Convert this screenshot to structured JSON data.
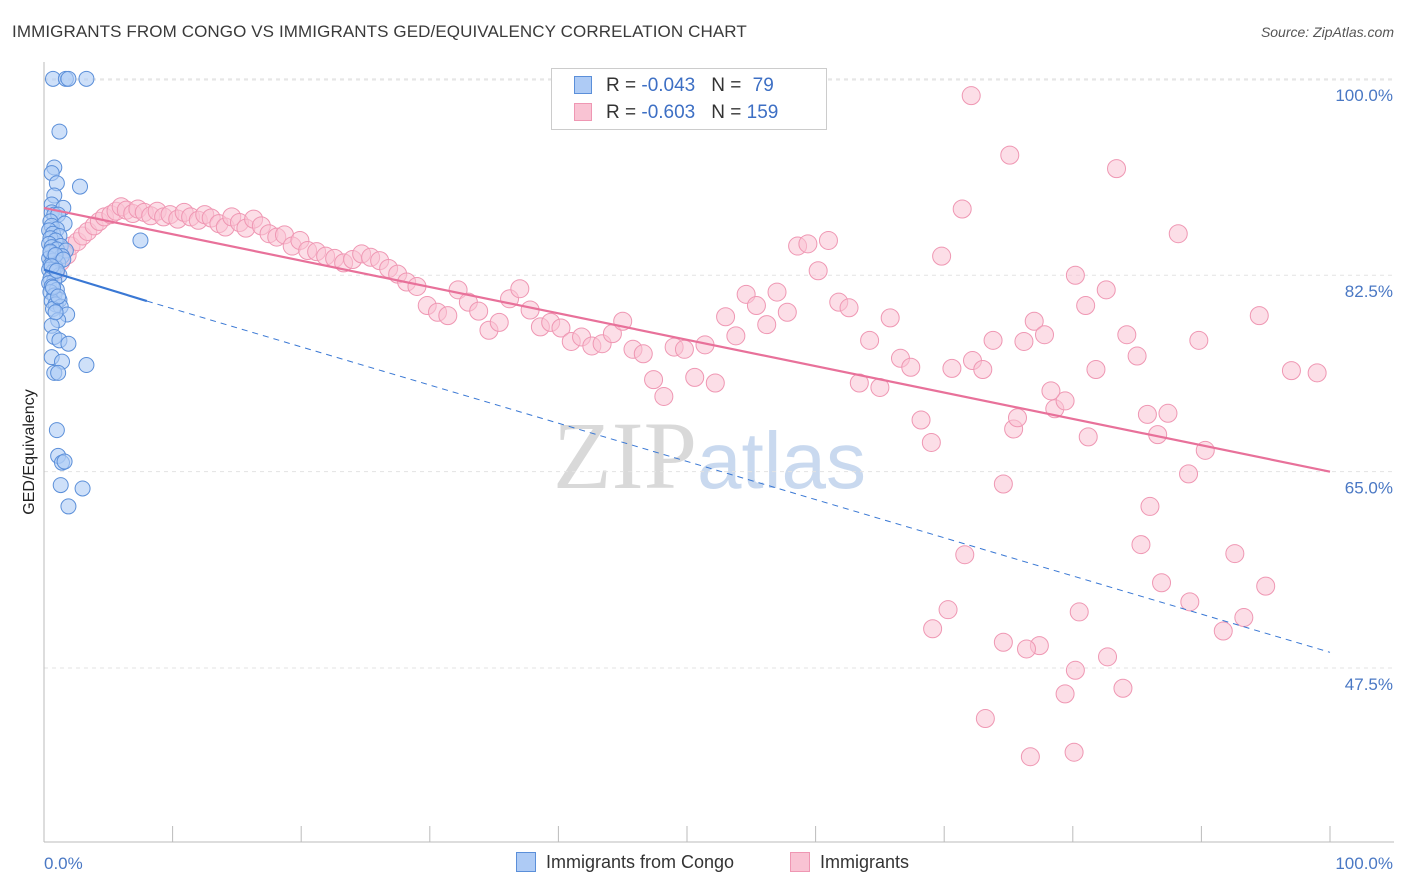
{
  "header": {
    "title": "IMMIGRANTS FROM CONGO VS IMMIGRANTS GED/EQUIVALENCY CORRELATION CHART",
    "source": "Source: ZipAtlas.com"
  },
  "legend": {
    "rows": [
      {
        "r_label": "R = ",
        "r_value": "-0.043",
        "n_label": "N = ",
        "n_value": "79"
      },
      {
        "r_label": "R = ",
        "r_value": "-0.603",
        "n_label": "N = ",
        "n_value": "159"
      }
    ]
  },
  "bottom_legend": {
    "congo": "Immigrants from Congo",
    "immigrants": "Immigrants"
  },
  "watermark": {
    "zip": "ZIP",
    "atlas": "atlas"
  },
  "colors": {
    "congo_fill": "#aecbf5",
    "congo_stroke": "#5b8fd9",
    "congo_line": "#3a78d4",
    "imm_fill": "#f9c3d3",
    "imm_stroke": "#ef97b3",
    "imm_line": "#e8719a",
    "grid": "#e3e3e3",
    "tick_text": "#4a78c4"
  },
  "chart_data": {
    "type": "scatter",
    "title": "IMMIGRANTS FROM CONGO VS IMMIGRANTS GED/EQUIVALENCY CORRELATION CHART",
    "xlabel": "",
    "ylabel": "GED/Equivalency",
    "xlim": [
      0,
      100
    ],
    "ylim": [
      32,
      101.5
    ],
    "x_tick_labels": [
      "0.0%",
      "100.0%"
    ],
    "y_ticks": [
      {
        "value": 47.5,
        "label": "47.5%"
      },
      {
        "value": 65.0,
        "label": "65.0%"
      },
      {
        "value": 82.5,
        "label": "82.5%"
      },
      {
        "value": 100.0,
        "label": "100.0%"
      }
    ],
    "grid": true,
    "legend_position": "top-center",
    "series": [
      {
        "name": "Immigrants from Congo",
        "r": -0.043,
        "n": 79,
        "trend": {
          "x": [
            0,
            8.0
          ],
          "y": [
            83.0,
            80.2
          ],
          "extended_x": [
            8.0,
            100
          ],
          "extended_y": [
            80.2,
            48.9
          ]
        },
        "points": [
          [
            0.7,
            100.0
          ],
          [
            1.7,
            100.0
          ],
          [
            1.9,
            100.0
          ],
          [
            3.3,
            100.0
          ],
          [
            1.2,
            95.3
          ],
          [
            0.8,
            92.1
          ],
          [
            0.6,
            91.6
          ],
          [
            2.8,
            90.4
          ],
          [
            1.0,
            90.7
          ],
          [
            0.8,
            89.6
          ],
          [
            0.6,
            88.8
          ],
          [
            1.5,
            88.5
          ],
          [
            0.6,
            88.1
          ],
          [
            0.8,
            87.9
          ],
          [
            1.1,
            87.9
          ],
          [
            0.5,
            87.3
          ],
          [
            1.6,
            87.1
          ],
          [
            0.6,
            86.9
          ],
          [
            1.0,
            86.6
          ],
          [
            0.4,
            86.5
          ],
          [
            0.7,
            86.2
          ],
          [
            1.2,
            86.0
          ],
          [
            0.5,
            85.8
          ],
          [
            0.9,
            85.6
          ],
          [
            7.5,
            85.6
          ],
          [
            0.4,
            85.3
          ],
          [
            1.3,
            85.1
          ],
          [
            0.6,
            85.0
          ],
          [
            1.0,
            84.8
          ],
          [
            1.7,
            84.7
          ],
          [
            0.5,
            84.5
          ],
          [
            0.8,
            84.2
          ],
          [
            1.4,
            84.2
          ],
          [
            0.4,
            84.0
          ],
          [
            0.7,
            83.8
          ],
          [
            1.1,
            83.6
          ],
          [
            0.5,
            83.4
          ],
          [
            0.9,
            83.2
          ],
          [
            0.4,
            83.0
          ],
          [
            0.7,
            82.8
          ],
          [
            1.2,
            82.5
          ],
          [
            0.5,
            82.2
          ],
          [
            0.8,
            82.0
          ],
          [
            0.4,
            81.8
          ],
          [
            0.6,
            81.5
          ],
          [
            1.0,
            81.2
          ],
          [
            0.5,
            81.0
          ],
          [
            0.8,
            80.7
          ],
          [
            1.2,
            80.3
          ],
          [
            0.6,
            80.2
          ],
          [
            0.9,
            79.9
          ],
          [
            1.3,
            79.7
          ],
          [
            0.7,
            79.5
          ],
          [
            1.8,
            79.0
          ],
          [
            1.1,
            78.5
          ],
          [
            0.6,
            78.0
          ],
          [
            0.8,
            77.0
          ],
          [
            1.2,
            76.7
          ],
          [
            1.9,
            76.4
          ],
          [
            0.6,
            75.2
          ],
          [
            1.4,
            74.8
          ],
          [
            3.3,
            74.5
          ],
          [
            0.8,
            73.8
          ],
          [
            1.1,
            73.8
          ],
          [
            1.0,
            68.7
          ],
          [
            1.1,
            66.4
          ],
          [
            1.4,
            65.8
          ],
          [
            1.6,
            65.9
          ],
          [
            1.3,
            63.8
          ],
          [
            3.0,
            63.5
          ],
          [
            1.9,
            61.9
          ],
          [
            0.5,
            84.6
          ],
          [
            0.9,
            84.3
          ],
          [
            1.5,
            83.9
          ],
          [
            0.6,
            83.3
          ],
          [
            1.0,
            82.9
          ],
          [
            0.7,
            81.4
          ],
          [
            1.1,
            80.6
          ],
          [
            0.9,
            79.2
          ]
        ]
      },
      {
        "name": "Immigrants",
        "r": -0.603,
        "n": 159,
        "trend": {
          "x": [
            0,
            100
          ],
          "y": [
            88.5,
            65.0
          ]
        },
        "points": [
          [
            0.9,
            82.8
          ],
          [
            1.3,
            83.7
          ],
          [
            1.8,
            84.3
          ],
          [
            2.1,
            85.1
          ],
          [
            2.6,
            85.5
          ],
          [
            3.0,
            86.0
          ],
          [
            3.4,
            86.4
          ],
          [
            3.9,
            86.9
          ],
          [
            4.3,
            87.3
          ],
          [
            4.7,
            87.7
          ],
          [
            5.2,
            87.9
          ],
          [
            5.6,
            88.2
          ],
          [
            6.0,
            88.6
          ],
          [
            6.4,
            88.3
          ],
          [
            6.9,
            88.0
          ],
          [
            7.3,
            88.4
          ],
          [
            7.8,
            88.1
          ],
          [
            8.3,
            87.8
          ],
          [
            8.8,
            88.2
          ],
          [
            9.3,
            87.7
          ],
          [
            9.8,
            87.9
          ],
          [
            10.4,
            87.5
          ],
          [
            10.9,
            88.1
          ],
          [
            11.4,
            87.7
          ],
          [
            12.0,
            87.4
          ],
          [
            12.5,
            87.9
          ],
          [
            13.0,
            87.6
          ],
          [
            13.6,
            87.1
          ],
          [
            14.1,
            86.8
          ],
          [
            14.6,
            87.7
          ],
          [
            15.2,
            87.2
          ],
          [
            15.7,
            86.7
          ],
          [
            16.3,
            87.5
          ],
          [
            16.9,
            86.9
          ],
          [
            17.5,
            86.2
          ],
          [
            18.1,
            85.9
          ],
          [
            18.7,
            86.1
          ],
          [
            19.3,
            85.1
          ],
          [
            19.9,
            85.6
          ],
          [
            20.5,
            84.7
          ],
          [
            21.2,
            84.6
          ],
          [
            21.9,
            84.2
          ],
          [
            22.6,
            84.0
          ],
          [
            23.3,
            83.6
          ],
          [
            24.0,
            83.9
          ],
          [
            24.7,
            84.4
          ],
          [
            25.4,
            84.1
          ],
          [
            26.1,
            83.8
          ],
          [
            26.8,
            83.1
          ],
          [
            27.5,
            82.6
          ],
          [
            28.2,
            81.9
          ],
          [
            29.0,
            81.5
          ],
          [
            29.8,
            79.8
          ],
          [
            30.6,
            79.2
          ],
          [
            31.4,
            78.9
          ],
          [
            32.2,
            81.2
          ],
          [
            33.0,
            80.1
          ],
          [
            33.8,
            79.3
          ],
          [
            34.6,
            77.6
          ],
          [
            35.4,
            78.3
          ],
          [
            36.2,
            80.4
          ],
          [
            37.0,
            81.3
          ],
          [
            37.8,
            79.4
          ],
          [
            38.6,
            77.9
          ],
          [
            39.4,
            78.3
          ],
          [
            40.2,
            77.8
          ],
          [
            41.0,
            76.6
          ],
          [
            41.8,
            77.0
          ],
          [
            42.6,
            76.2
          ],
          [
            43.4,
            76.4
          ],
          [
            44.2,
            77.3
          ],
          [
            45.0,
            78.4
          ],
          [
            45.8,
            75.9
          ],
          [
            46.6,
            75.5
          ],
          [
            47.4,
            73.2
          ],
          [
            48.2,
            71.7
          ],
          [
            49.0,
            76.1
          ],
          [
            49.8,
            75.9
          ],
          [
            50.6,
            73.4
          ],
          [
            51.4,
            76.3
          ],
          [
            52.2,
            72.9
          ],
          [
            53.0,
            78.8
          ],
          [
            53.8,
            77.1
          ],
          [
            54.6,
            80.8
          ],
          [
            55.4,
            79.8
          ],
          [
            56.2,
            78.1
          ],
          [
            57.0,
            81.0
          ],
          [
            57.8,
            79.2
          ],
          [
            58.6,
            85.1
          ],
          [
            59.4,
            85.3
          ],
          [
            60.2,
            82.9
          ],
          [
            61.0,
            85.6
          ],
          [
            61.8,
            80.1
          ],
          [
            62.6,
            79.6
          ],
          [
            63.4,
            72.9
          ],
          [
            64.2,
            76.7
          ],
          [
            65.0,
            72.5
          ],
          [
            65.8,
            78.7
          ],
          [
            66.6,
            75.1
          ],
          [
            67.4,
            74.3
          ],
          [
            68.2,
            69.6
          ],
          [
            69.0,
            67.6
          ],
          [
            69.8,
            84.2
          ],
          [
            70.6,
            74.2
          ],
          [
            71.4,
            88.4
          ],
          [
            72.2,
            74.9
          ],
          [
            73.0,
            74.1
          ],
          [
            73.8,
            76.7
          ],
          [
            74.6,
            63.9
          ],
          [
            75.4,
            68.8
          ],
          [
            76.2,
            76.6
          ],
          [
            77.0,
            78.4
          ],
          [
            77.8,
            77.2
          ],
          [
            78.6,
            70.6
          ],
          [
            79.4,
            71.3
          ],
          [
            80.2,
            82.5
          ],
          [
            81.0,
            79.8
          ],
          [
            81.8,
            74.1
          ],
          [
            82.6,
            81.2
          ],
          [
            83.4,
            92.0
          ],
          [
            84.2,
            77.2
          ],
          [
            85.0,
            75.3
          ],
          [
            85.8,
            70.1
          ],
          [
            86.6,
            68.3
          ],
          [
            87.4,
            70.2
          ],
          [
            88.2,
            86.2
          ],
          [
            89.0,
            64.8
          ],
          [
            89.8,
            76.7
          ],
          [
            92.6,
            57.7
          ],
          [
            95.0,
            54.8
          ],
          [
            94.5,
            78.9
          ],
          [
            97.0,
            74.0
          ],
          [
            99.0,
            73.8
          ],
          [
            75.1,
            93.2
          ],
          [
            72.1,
            98.5
          ],
          [
            80.5,
            52.5
          ],
          [
            83.9,
            45.7
          ],
          [
            77.4,
            49.5
          ],
          [
            70.3,
            52.7
          ],
          [
            74.6,
            49.8
          ],
          [
            73.2,
            43.0
          ],
          [
            80.2,
            47.3
          ],
          [
            76.4,
            49.2
          ],
          [
            85.3,
            58.5
          ],
          [
            71.6,
            57.6
          ],
          [
            69.1,
            51.0
          ],
          [
            75.7,
            69.8
          ],
          [
            78.3,
            72.2
          ],
          [
            81.2,
            68.1
          ],
          [
            86.0,
            61.9
          ],
          [
            90.3,
            66.9
          ],
          [
            80.1,
            40.0
          ],
          [
            76.7,
            39.6
          ],
          [
            79.4,
            45.2
          ],
          [
            82.7,
            48.5
          ],
          [
            86.9,
            55.1
          ],
          [
            89.1,
            53.4
          ],
          [
            91.7,
            50.8
          ],
          [
            93.3,
            52.0
          ]
        ]
      }
    ]
  }
}
